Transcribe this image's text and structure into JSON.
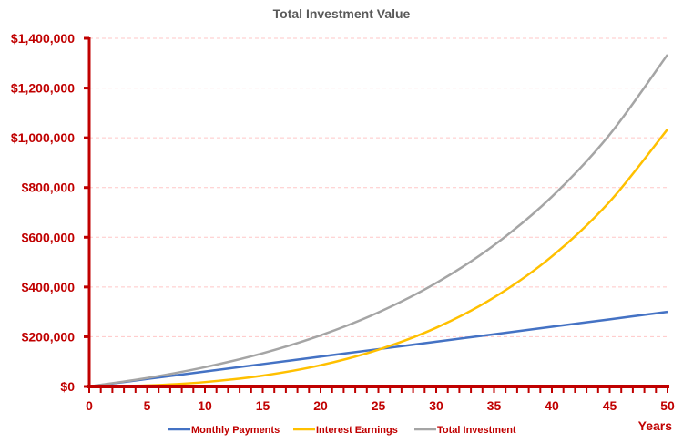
{
  "chart_data": {
    "type": "line",
    "title": "Total Investment Value",
    "xlabel": "Years",
    "ylabel": "",
    "xlim": [
      0,
      50
    ],
    "ylim": [
      0,
      1400000
    ],
    "x_ticks": [
      "0",
      "5",
      "10",
      "15",
      "20",
      "25",
      "30",
      "35",
      "40",
      "45",
      "50"
    ],
    "y_ticks": [
      "$0",
      "$200,000",
      "$400,000",
      "$600,000",
      "$800,000",
      "$1,000,000",
      "$1,200,000",
      "$1,400,000"
    ],
    "grid": "horizontal dashed",
    "legend_position": "bottom",
    "axis_color": "#c00000",
    "grid_color": "#ffc7c7",
    "x": [
      0,
      5,
      10,
      15,
      20,
      25,
      30,
      35,
      40,
      45,
      50
    ],
    "series": [
      {
        "name": "Monthly Payments",
        "color": "#4472c4",
        "values": [
          0,
          30000,
          60000,
          90000,
          120000,
          150000,
          180000,
          210000,
          240000,
          270000,
          300000
        ]
      },
      {
        "name": "Interest Earnings",
        "color": "#ffc000",
        "values": [
          0,
          4010,
          17640,
          43640,
          85510,
          147760,
          236120,
          358030,
          523010,
          743230,
          1034300
        ]
      },
      {
        "name": "Total Investment",
        "color": "#a5a5a5",
        "values": [
          0,
          34010,
          77640,
          133640,
          205510,
          297760,
          416120,
          568030,
          763010,
          1013230,
          1334300
        ]
      }
    ]
  }
}
